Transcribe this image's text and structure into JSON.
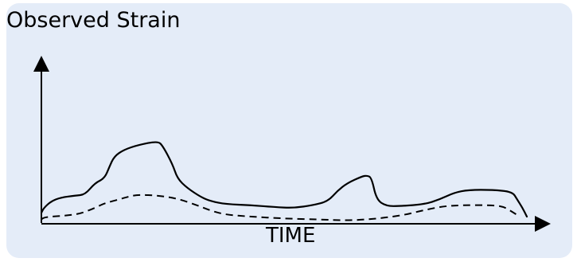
{
  "chart_data": {
    "type": "line",
    "title": "",
    "ylabel": "Observed Strain",
    "xlabel": "TIME",
    "grid": false,
    "legend": "none",
    "xlim": [
      0,
      100
    ],
    "ylim": [
      0,
      100
    ],
    "colors": {
      "background": "#e4ecf8",
      "ink": "#000000"
    },
    "series": [
      {
        "style": "solid",
        "points": [
          [
            0,
            4
          ],
          [
            0.5,
            9
          ],
          [
            2,
            16
          ],
          [
            4,
            20
          ],
          [
            7,
            22
          ],
          [
            9,
            23
          ],
          [
            11,
            35
          ],
          [
            13,
            40
          ],
          [
            14,
            52
          ],
          [
            15,
            63
          ],
          [
            17,
            70
          ],
          [
            20,
            75
          ],
          [
            24,
            79
          ],
          [
            25,
            74
          ],
          [
            27,
            55
          ],
          [
            28,
            40
          ],
          [
            30,
            30
          ],
          [
            33,
            20
          ],
          [
            35,
            16
          ],
          [
            38,
            13
          ],
          [
            43,
            12
          ],
          [
            48,
            10
          ],
          [
            52,
            9
          ],
          [
            56,
            12
          ],
          [
            59,
            16
          ],
          [
            61,
            27
          ],
          [
            63,
            35
          ],
          [
            66,
            42
          ],
          [
            67,
            43
          ],
          [
            68,
            41
          ],
          [
            69,
            18
          ],
          [
            71,
            11
          ],
          [
            74,
            11
          ],
          [
            79,
            13
          ],
          [
            82,
            18
          ],
          [
            85,
            25
          ],
          [
            88,
            28
          ],
          [
            93,
            28
          ],
          [
            97,
            26
          ],
          [
            98,
            18
          ],
          [
            99,
            10
          ],
          [
            100,
            0
          ]
        ]
      },
      {
        "style": "dashed",
        "points": [
          [
            0,
            -3
          ],
          [
            0.5,
            -1
          ],
          [
            2,
            0
          ],
          [
            5,
            1
          ],
          [
            8,
            3
          ],
          [
            11,
            9
          ],
          [
            13,
            14
          ],
          [
            16,
            18
          ],
          [
            18,
            21
          ],
          [
            20,
            23
          ],
          [
            24,
            22
          ],
          [
            28,
            19
          ],
          [
            32,
            12
          ],
          [
            35,
            6
          ],
          [
            38,
            2
          ],
          [
            43,
            0
          ],
          [
            50,
            -2
          ],
          [
            57,
            -3
          ],
          [
            63,
            -4
          ],
          [
            67,
            -3
          ],
          [
            71,
            -1
          ],
          [
            75,
            2
          ],
          [
            79,
            7
          ],
          [
            83,
            11
          ],
          [
            87,
            12
          ],
          [
            92,
            12
          ],
          [
            95,
            11
          ],
          [
            97,
            5
          ],
          [
            98.5,
            0
          ]
        ]
      }
    ]
  }
}
